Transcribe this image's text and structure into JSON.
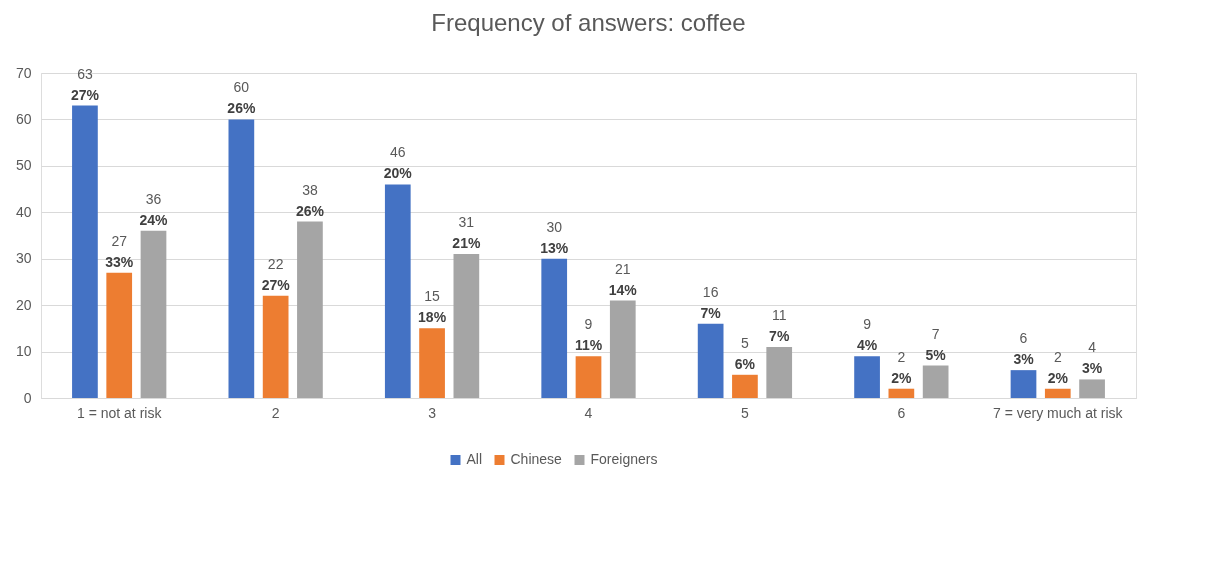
{
  "chart_data": {
    "type": "bar",
    "title": "Frequency of answers: coffee",
    "categories": [
      "1 = not at risk",
      "2",
      "3",
      "4",
      "5",
      "6",
      "7 = very much at risk"
    ],
    "series": [
      {
        "name": "All",
        "color": "#4472c4",
        "values": [
          63,
          60,
          46,
          30,
          16,
          9,
          6
        ],
        "value_labels": [
          "63\n27%",
          "60\n26%",
          "46\n20%",
          "30\n13%",
          "16\n7%",
          "9\n4%",
          "6\n3%"
        ]
      },
      {
        "name": "Chinese",
        "color": "#ed7d31",
        "values": [
          27,
          22,
          15,
          9,
          5,
          2,
          2
        ],
        "value_labels": [
          "27\n33%",
          "22\n27%",
          "15\n18%",
          "9\n11%",
          "5\n6%",
          "2\n2%",
          "2\n2%"
        ]
      },
      {
        "name": "Foreigners",
        "color": "#a5a5a5",
        "values": [
          36,
          38,
          31,
          21,
          11,
          7,
          4
        ],
        "value_labels": [
          "36\n24%",
          "38\n26%",
          "31\n21%",
          "21\n14%",
          "11\n7%",
          "7\n5%",
          "4\n3%"
        ]
      }
    ],
    "ylim": [
      0,
      70
    ],
    "yticks": [
      0,
      10,
      20,
      30,
      40,
      50,
      60,
      70
    ],
    "grid": "y",
    "legend": "bottom"
  }
}
